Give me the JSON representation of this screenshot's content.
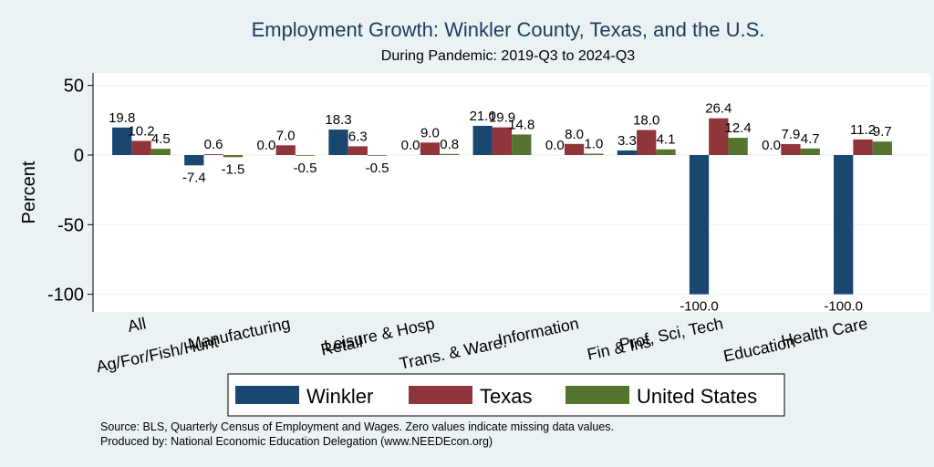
{
  "chart_data": {
    "type": "bar",
    "title": "Employment Growth: Winkler County, Texas, and the U.S.",
    "subtitle": "During Pandemic: 2019-Q3 to 2024-Q3",
    "ylabel": "Percent",
    "ylim": [
      -110,
      55
    ],
    "yticks": [
      50,
      0,
      -50,
      -100
    ],
    "grid": true,
    "legend_position": "bottom",
    "categories": [
      "All",
      "Ag/For/Fish/Hunt",
      "Manufacturing",
      "Retail",
      "Leisure & Hosp",
      "Trans. & Ware.",
      "Information",
      "Fin & Ins",
      "Prof, Sci, Tech",
      "Education",
      "Health Care"
    ],
    "series": [
      {
        "name": "Winkler",
        "color": "#1a476f",
        "values": [
          19.8,
          -7.4,
          0.0,
          18.3,
          0.0,
          21.0,
          0.0,
          3.3,
          -100.0,
          0.0,
          -100.0
        ],
        "labels": [
          "19.8",
          "-7.4",
          "0.0",
          "18.3",
          "0.0",
          "21.0",
          "0.0",
          "3.3",
          "-100.0",
          "0.0",
          "-100.0"
        ]
      },
      {
        "name": "Texas",
        "color": "#90353b",
        "values": [
          10.2,
          0.6,
          7.0,
          6.3,
          9.0,
          19.9,
          8.0,
          18.0,
          26.4,
          7.9,
          11.2
        ],
        "labels": [
          "10.2",
          "0.6",
          "7.0",
          "6.3",
          "9.0",
          "19.9",
          "8.0",
          "18.0",
          "26.4",
          "7.9",
          "11.2"
        ]
      },
      {
        "name": "United States",
        "color": "#55752f",
        "values": [
          4.5,
          -1.5,
          -0.5,
          -0.5,
          0.8,
          14.8,
          1.0,
          4.1,
          12.4,
          4.7,
          9.7
        ],
        "labels": [
          "4.5",
          "-1.5",
          "-0.5",
          "-0.5",
          "0.8",
          "14.8",
          "1.0",
          "4.1",
          "12.4",
          "4.7",
          "9.7"
        ]
      }
    ],
    "notes": [
      "Source: BLS, Quarterly Census of Employment and Wages. Zero values indicate missing data values.",
      "Produced by: National Economic Education Delegation (www.NEEDEcon.org)"
    ]
  }
}
